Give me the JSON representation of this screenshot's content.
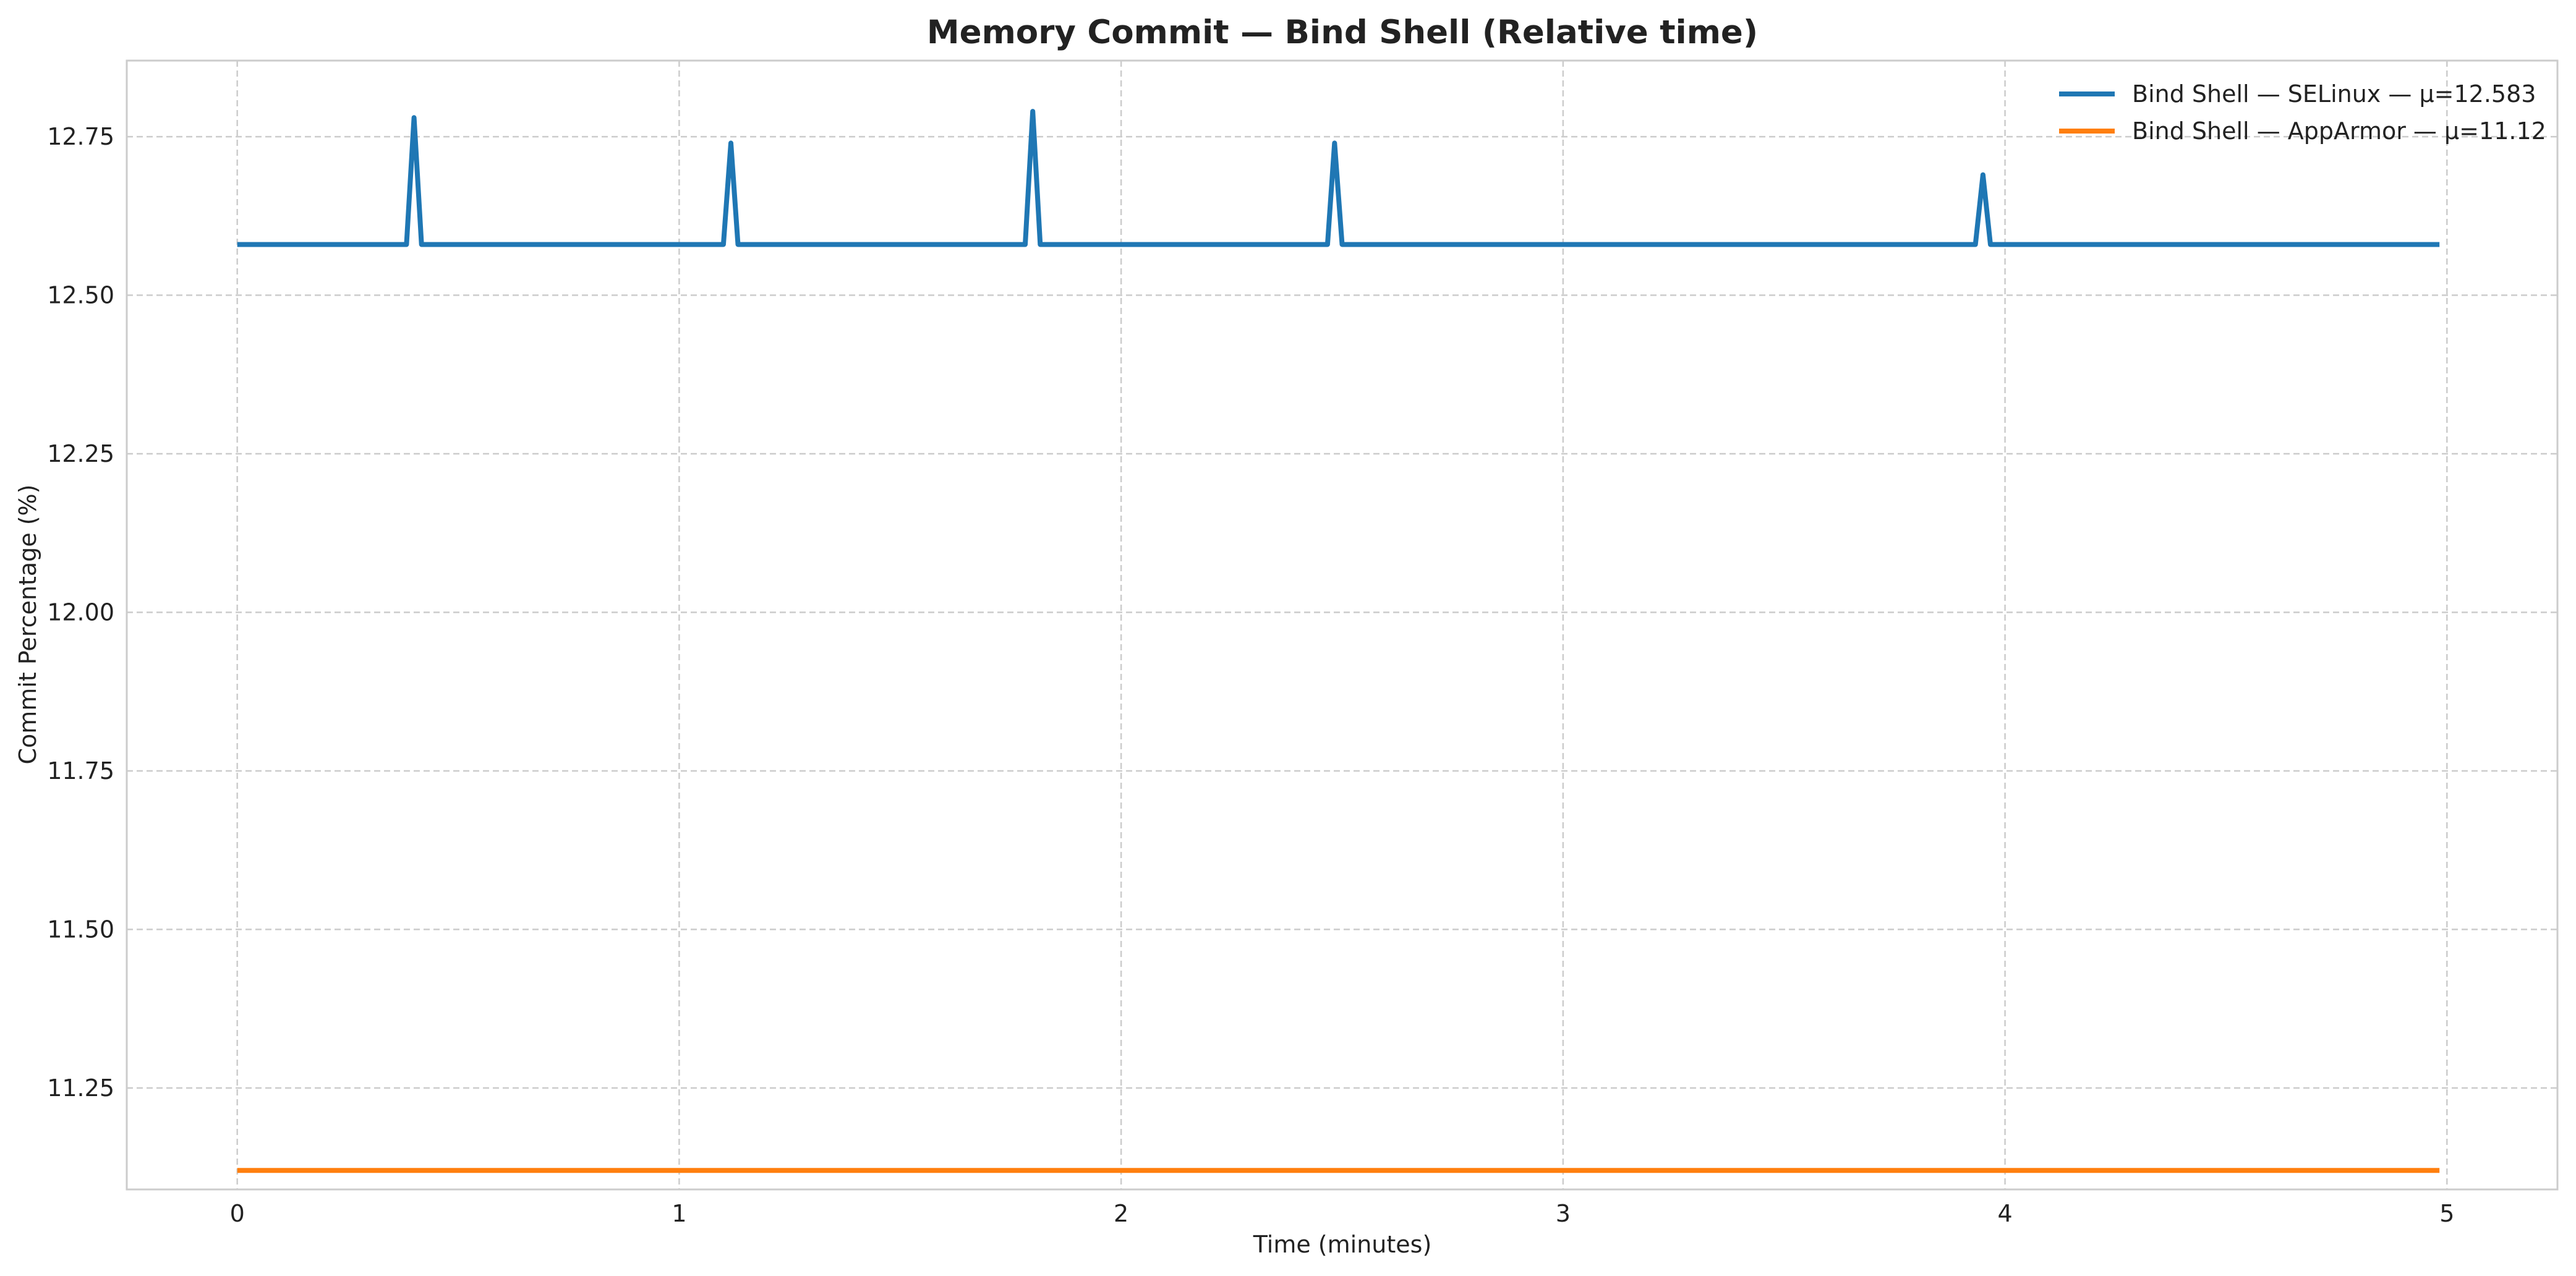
{
  "chart_data": {
    "type": "line",
    "title": "Memory Commit — Bind Shell (Relative time)",
    "xlabel": "Time (minutes)",
    "ylabel": "Commit Percentage (%)",
    "xlim": [
      -0.25,
      5.25
    ],
    "ylim": [
      11.09,
      12.87
    ],
    "x_ticks": [
      0,
      1,
      2,
      3,
      4,
      5
    ],
    "x_tick_labels": [
      "0",
      "1",
      "2",
      "3",
      "4",
      "5"
    ],
    "y_ticks": [
      11.25,
      11.5,
      11.75,
      12.0,
      12.25,
      12.5,
      12.75
    ],
    "y_tick_labels": [
      "11.25",
      "11.50",
      "11.75",
      "12.00",
      "12.25",
      "12.50",
      "12.75"
    ],
    "grid": true,
    "legend_position": "top-right",
    "series": [
      {
        "name": "Bind Shell — SELinux — μ=12.583",
        "color": "#1f77b4",
        "x": [
          0,
          0.383,
          0.4,
          0.417,
          1.1,
          1.117,
          1.133,
          1.783,
          1.8,
          1.817,
          2.467,
          2.483,
          2.5,
          3.933,
          3.95,
          3.967,
          4.983
        ],
        "y": [
          12.58,
          12.58,
          12.78,
          12.58,
          12.58,
          12.74,
          12.58,
          12.58,
          12.79,
          12.58,
          12.58,
          12.74,
          12.58,
          12.58,
          12.69,
          12.58,
          12.58
        ]
      },
      {
        "name": "Bind Shell — AppArmor — μ=11.12",
        "color": "#ff7f0e",
        "x": [
          0,
          4.983
        ],
        "y": [
          11.12,
          11.12
        ]
      }
    ]
  }
}
